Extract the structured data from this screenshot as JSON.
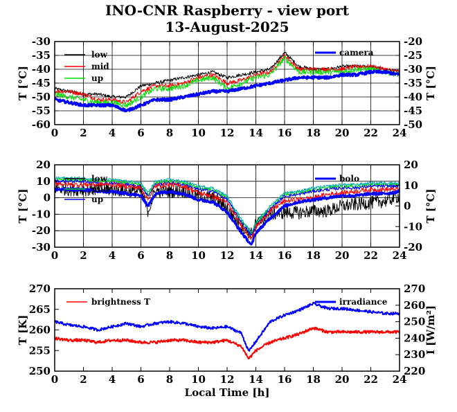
{
  "header": {
    "title": "INO-CNR Raspberry - view port",
    "subtitle": "13-August-2025"
  },
  "chart_data": [
    {
      "type": "line",
      "ylabel": "T [°C]",
      "ylabel_right": "T [°C]",
      "xlim": [
        0,
        24
      ],
      "ylim": [
        -60,
        -30
      ],
      "ylim_right": [
        -50,
        -20
      ],
      "xticks": [
        0,
        2,
        4,
        6,
        8,
        10,
        12,
        14,
        16,
        18,
        20,
        22,
        24
      ],
      "yticks": [
        -60,
        -55,
        -50,
        -45,
        -40,
        -35,
        -30
      ],
      "yticks_right": [
        -50,
        -45,
        -40,
        -35,
        -30,
        -25,
        -20
      ],
      "grid": true,
      "legend": "top-left",
      "series": [
        {
          "name": "low",
          "color": "#000000",
          "width": 1,
          "noise": 0.6,
          "x": [
            0,
            1,
            2,
            3,
            4,
            5,
            6,
            7,
            8,
            9,
            10,
            11,
            12,
            13,
            14,
            15,
            16,
            17,
            18,
            19,
            20,
            21,
            22,
            23,
            24
          ],
          "y": [
            -47,
            -48,
            -49,
            -49,
            -50,
            -50,
            -46,
            -45,
            -44,
            -43,
            -42,
            -41,
            -43,
            -42,
            -41,
            -40,
            -34,
            -39,
            -40,
            -40,
            -39,
            -39,
            -39,
            -40,
            -41
          ]
        },
        {
          "name": "mid",
          "color": "#ff0000",
          "width": 1,
          "noise": 0.8,
          "x": [
            0,
            1,
            2,
            3,
            4,
            5,
            6,
            7,
            8,
            9,
            10,
            11,
            12,
            13,
            14,
            15,
            16,
            17,
            18,
            19,
            20,
            21,
            22,
            23,
            24
          ],
          "y": [
            -48,
            -48,
            -49,
            -51,
            -51,
            -52,
            -48,
            -46,
            -46,
            -45,
            -43,
            -42,
            -45,
            -44,
            -42,
            -41,
            -35,
            -40,
            -40,
            -40,
            -40,
            -39,
            -39,
            -40,
            -41
          ]
        },
        {
          "name": "up",
          "color": "#00dd00",
          "width": 1,
          "noise": 1.0,
          "x": [
            0,
            1,
            2,
            3,
            4,
            5,
            6,
            7,
            8,
            9,
            10,
            11,
            12,
            13,
            14,
            15,
            16,
            17,
            18,
            19,
            20,
            21,
            22,
            23,
            24
          ],
          "y": [
            -49,
            -50,
            -51,
            -52,
            -52,
            -53,
            -50,
            -47,
            -47,
            -46,
            -44,
            -43,
            -47,
            -45,
            -43,
            -42,
            -36,
            -41,
            -41,
            -41,
            -41,
            -40,
            -40,
            -41,
            -42
          ]
        },
        {
          "name": "camera",
          "color": "#0000ff",
          "width": 3,
          "noise": 0.5,
          "axis": "right",
          "x": [
            0,
            1,
            2,
            3,
            4,
            5,
            6,
            7,
            8,
            9,
            10,
            11,
            12,
            13,
            14,
            15,
            16,
            17,
            18,
            19,
            20,
            21,
            22,
            23,
            24
          ],
          "y": [
            -41,
            -42,
            -43,
            -43,
            -43,
            -45,
            -43,
            -41,
            -41,
            -40,
            -39,
            -38,
            -38,
            -37,
            -36,
            -35,
            -34,
            -33,
            -33,
            -33,
            -32,
            -32,
            -31,
            -31,
            -32
          ]
        }
      ]
    },
    {
      "type": "line",
      "ylabel": "T [°C]",
      "ylabel_right": "T [°C]",
      "xlim": [
        0,
        24
      ],
      "ylim": [
        -30,
        20
      ],
      "ylim_right": [
        -20,
        20
      ],
      "xticks": [
        0,
        2,
        4,
        6,
        8,
        10,
        12,
        14,
        16,
        18,
        20,
        22,
        24
      ],
      "yticks": [
        -30,
        -20,
        -10,
        0,
        10,
        20
      ],
      "yticks_right": [
        -20,
        -10,
        0,
        10,
        20
      ],
      "grid": true,
      "legend": "top-left",
      "series": [
        {
          "name": "low",
          "color": "#000000",
          "width": 1,
          "noise": 4.0,
          "x": [
            0,
            1,
            2,
            3,
            4,
            5,
            6,
            6.5,
            7,
            8,
            9,
            10,
            11,
            12,
            13,
            13.7,
            14,
            15,
            16,
            17,
            18,
            19,
            20,
            21,
            22,
            23,
            24
          ],
          "y": [
            6,
            5,
            5,
            5,
            5,
            4,
            4,
            -8,
            4,
            4,
            4,
            1,
            0,
            -6,
            -18,
            -22,
            -16,
            -10,
            -9,
            -9,
            -8,
            -8,
            -5,
            -4,
            -3,
            -2,
            1
          ]
        },
        {
          "name": "mid",
          "color": "#00dd00",
          "width": 1,
          "noise": 1.0,
          "x": [
            0,
            1,
            2,
            3,
            4,
            5,
            6,
            6.5,
            7,
            8,
            9,
            10,
            11,
            12,
            13,
            13.7,
            14,
            15,
            16,
            17,
            18,
            19,
            20,
            21,
            22,
            23,
            24
          ],
          "y": [
            11,
            11,
            11,
            10,
            10,
            9,
            8,
            2,
            9,
            10,
            9,
            6,
            5,
            0,
            -14,
            -22,
            -16,
            -6,
            2,
            3,
            5,
            6,
            7,
            7,
            8,
            8,
            8
          ]
        },
        {
          "name": "up",
          "color": "#0000ff",
          "width": 1,
          "noise": 1.0,
          "x": [
            0,
            1,
            2,
            3,
            4,
            5,
            6,
            6.5,
            7,
            8,
            9,
            10,
            11,
            12,
            13,
            13.7,
            14,
            15,
            16,
            17,
            18,
            19,
            20,
            21,
            22,
            23,
            24
          ],
          "y": [
            10,
            10,
            10,
            9,
            9,
            8,
            7,
            1,
            8,
            9,
            8,
            5,
            4,
            -1,
            -15,
            -23,
            -17,
            -7,
            1,
            2,
            4,
            5,
            6,
            6,
            7,
            7,
            7
          ]
        },
        {
          "name": "",
          "color": "#ff0000",
          "width": 1,
          "noise": 1.5,
          "x": [
            0,
            1,
            2,
            3,
            4,
            5,
            6,
            6.5,
            7,
            8,
            9,
            10,
            11,
            12,
            13,
            13.7,
            14,
            15,
            16,
            17,
            18,
            19,
            20,
            21,
            22,
            23,
            24
          ],
          "y": [
            9,
            8,
            8,
            8,
            8,
            7,
            6,
            -1,
            7,
            8,
            7,
            3,
            1,
            -3,
            -17,
            -25,
            -18,
            -8,
            -2,
            -1,
            0,
            2,
            3,
            4,
            5,
            5,
            5
          ]
        },
        {
          "name": "",
          "color": "#00aaaa",
          "width": 1,
          "noise": 0.8,
          "x": [
            0,
            1,
            2,
            3,
            4,
            5,
            6,
            6.5,
            7,
            8,
            9,
            10,
            11,
            12,
            13,
            13.7,
            14,
            15,
            16,
            17,
            18,
            19,
            20,
            21,
            22,
            23,
            24
          ],
          "y": [
            12,
            12,
            12,
            11,
            11,
            10,
            9,
            3,
            10,
            11,
            10,
            7,
            6,
            1,
            -13,
            -21,
            -15,
            -5,
            3,
            4,
            6,
            7,
            8,
            8,
            9,
            9,
            9
          ]
        },
        {
          "name": "bolo",
          "color": "#0000ff",
          "width": 3,
          "noise": 0.6,
          "axis": "right",
          "x": [
            0,
            1,
            2,
            3,
            4,
            5,
            6,
            6.5,
            7,
            8,
            9,
            10,
            11,
            12,
            13,
            13.7,
            14,
            15,
            16,
            17,
            18,
            19,
            20,
            21,
            22,
            23,
            24
          ],
          "y": [
            8,
            8,
            8,
            7,
            7,
            6,
            5,
            0,
            6,
            7,
            6,
            3,
            2,
            -3,
            -13,
            -19,
            -13,
            -6,
            0,
            2,
            3,
            4,
            5,
            5,
            6,
            6,
            7
          ]
        }
      ]
    },
    {
      "type": "line",
      "xlabel": "Local Time [h]",
      "ylabel": "T [K]",
      "ylabel_right": "I [W/m²]",
      "xlim": [
        0,
        24
      ],
      "ylim": [
        250,
        270
      ],
      "ylim_right": [
        220,
        270
      ],
      "xticks": [
        0,
        2,
        4,
        6,
        8,
        10,
        12,
        14,
        16,
        18,
        20,
        22,
        24
      ],
      "yticks": [
        250,
        255,
        260,
        265,
        270
      ],
      "yticks_right": [
        220,
        230,
        240,
        250,
        260,
        270
      ],
      "grid": false,
      "legend": "top-left",
      "series": [
        {
          "name": "brightness T",
          "color": "#ff0000",
          "width": 2,
          "noise": 0.35,
          "x": [
            0,
            1,
            2,
            3,
            4,
            5,
            6,
            7,
            8,
            9,
            10,
            11,
            12,
            13,
            13.5,
            14,
            15,
            16,
            17,
            18,
            19,
            20,
            21,
            22,
            23,
            24
          ],
          "y": [
            258,
            257.5,
            257.5,
            257,
            257.5,
            257.5,
            257,
            257,
            257.5,
            257.5,
            257,
            257,
            257.5,
            256,
            253,
            255,
            257,
            258,
            259,
            260.5,
            259.5,
            259.5,
            259.5,
            259.5,
            259.5,
            259.5
          ]
        },
        {
          "name": "irradiance",
          "color": "#0000ff",
          "width": 2,
          "noise": 0.8,
          "axis": "right",
          "x": [
            0,
            1,
            2,
            3,
            4,
            5,
            6,
            7,
            8,
            9,
            10,
            11,
            12,
            13,
            13.5,
            14,
            15,
            16,
            17,
            18,
            19,
            20,
            21,
            22,
            23,
            24
          ],
          "y": [
            250,
            248,
            247,
            245,
            247,
            249,
            247,
            249,
            250,
            249,
            247,
            246,
            247,
            243,
            232,
            238,
            250,
            254,
            257,
            261,
            258,
            258,
            257,
            256,
            255,
            255
          ]
        }
      ]
    }
  ]
}
